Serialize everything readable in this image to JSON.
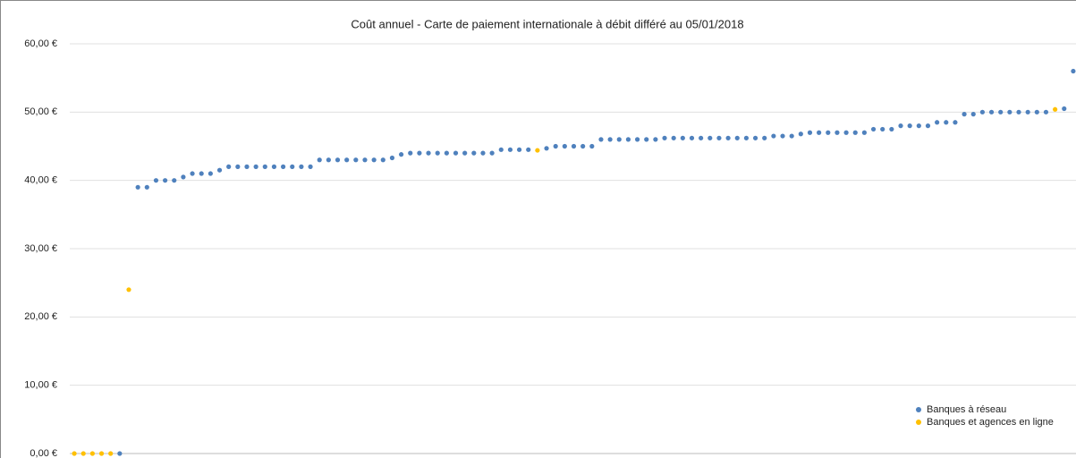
{
  "chart_data": {
    "type": "scatter",
    "title": "Coût annuel - Carte de paiement internationale à débit différé au 05/01/2018",
    "xlim": [
      0.5,
      111.5
    ],
    "ylim": [
      0,
      60
    ],
    "yticks": [
      {
        "value": 0,
        "label": "0,00 €"
      },
      {
        "value": 10,
        "label": "10,00 €"
      },
      {
        "value": 20,
        "label": "20,00 €"
      },
      {
        "value": 30,
        "label": "30,00 €"
      },
      {
        "value": 40,
        "label": "40,00 €"
      },
      {
        "value": 50,
        "label": "50,00 €"
      },
      {
        "value": 60,
        "label": "60,00 €"
      }
    ],
    "grid": true,
    "legend": "bottom-right",
    "series": [
      {
        "name": "Banques à réseau",
        "color": "#4f81bd",
        "x": [
          6,
          8,
          9,
          10,
          11,
          12,
          13,
          14,
          15,
          16,
          17,
          18,
          19,
          20,
          21,
          22,
          23,
          24,
          25,
          26,
          27,
          28,
          29,
          30,
          31,
          32,
          33,
          34,
          35,
          36,
          37,
          38,
          39,
          40,
          41,
          42,
          43,
          44,
          45,
          46,
          47,
          48,
          49,
          50,
          51,
          53,
          54,
          55,
          56,
          57,
          58,
          59,
          60,
          61,
          62,
          63,
          64,
          65,
          66,
          67,
          68,
          69,
          70,
          71,
          72,
          73,
          74,
          75,
          76,
          77,
          78,
          79,
          80,
          81,
          82,
          83,
          84,
          85,
          86,
          87,
          88,
          89,
          90,
          91,
          92,
          93,
          94,
          95,
          96,
          97,
          98,
          99,
          100,
          101,
          102,
          103,
          104,
          105,
          106,
          107,
          108,
          110,
          111
        ],
        "values": [
          0,
          39,
          39,
          40,
          40,
          40,
          40.5,
          41,
          41,
          41,
          41.5,
          42,
          42,
          42,
          42,
          42,
          42,
          42,
          42,
          42,
          42,
          43,
          43,
          43,
          43,
          43,
          43,
          43,
          43,
          43.3,
          43.8,
          44,
          44,
          44,
          44,
          44,
          44,
          44,
          44,
          44,
          44,
          44.5,
          44.5,
          44.5,
          44.5,
          44.7,
          45,
          45,
          45,
          45,
          45,
          46,
          46,
          46,
          46,
          46,
          46,
          46,
          46.2,
          46.2,
          46.2,
          46.2,
          46.2,
          46.2,
          46.2,
          46.2,
          46.2,
          46.2,
          46.2,
          46.2,
          46.5,
          46.5,
          46.5,
          46.8,
          47,
          47,
          47,
          47,
          47,
          47,
          47,
          47.5,
          47.5,
          47.5,
          48,
          48,
          48,
          48,
          48.5,
          48.5,
          48.5,
          49.7,
          49.7,
          50,
          50,
          50,
          50,
          50,
          50,
          50,
          50,
          50.5,
          56
        ]
      },
      {
        "name": "Banques et agences en ligne",
        "color": "#ffc000",
        "x": [
          1,
          2,
          3,
          4,
          5,
          7,
          52,
          109
        ],
        "values": [
          0,
          0,
          0,
          0,
          0,
          24,
          44.4,
          50.4
        ]
      }
    ]
  }
}
